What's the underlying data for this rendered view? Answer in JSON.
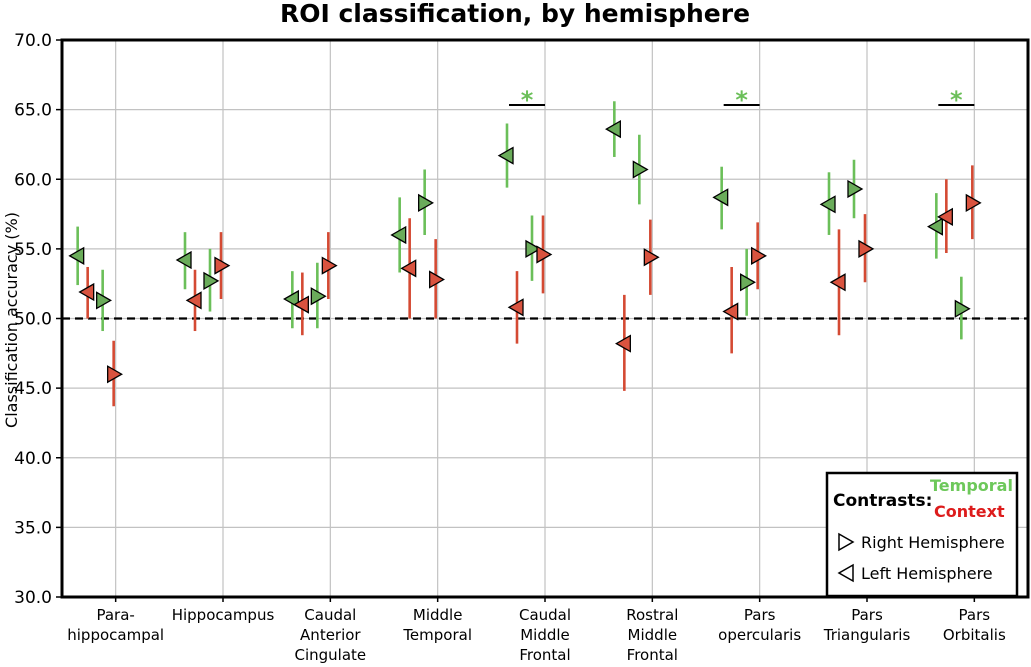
{
  "chart_data": {
    "type": "scatter",
    "title": "ROI classification, by hemisphere",
    "ylabel": "Classification accuracy (%)",
    "xlabel": "",
    "ylim": [
      30,
      70
    ],
    "yticks": [
      30,
      35,
      40,
      45,
      50,
      55,
      60,
      65,
      70
    ],
    "grid": true,
    "chance_line": 50,
    "categories": [
      [
        "Para-",
        "hippocampal"
      ],
      [
        "Hippocampus"
      ],
      [
        "Caudal",
        "Anterior",
        "Cingulate"
      ],
      [
        "Middle",
        "Temporal"
      ],
      [
        "Caudal",
        "Middle",
        "Frontal"
      ],
      [
        "Rostral",
        "Middle",
        "Frontal"
      ],
      [
        "Pars",
        "opercularis"
      ],
      [
        "Pars",
        "Triangularis"
      ],
      [
        "Pars",
        "Orbitalis"
      ]
    ],
    "series": [
      {
        "name": "Temporal",
        "hemisphere": "Left Hemisphere",
        "marker": "left-triangle",
        "values": [
          54.5,
          54.2,
          51.4,
          56.0,
          61.7,
          63.6,
          58.7,
          58.2,
          56.6
        ],
        "ci_low": [
          52.4,
          52.1,
          49.3,
          53.3,
          59.4,
          61.6,
          56.4,
          56.0,
          54.3
        ],
        "ci_high": [
          56.6,
          56.2,
          53.4,
          58.7,
          64.0,
          65.6,
          60.9,
          60.5,
          59.0
        ]
      },
      {
        "name": "Context",
        "hemisphere": "Left Hemisphere",
        "marker": "left-triangle",
        "values": [
          51.9,
          51.3,
          51.0,
          53.6,
          50.8,
          48.2,
          50.5,
          52.6,
          57.3
        ],
        "ci_low": [
          50.0,
          49.1,
          48.8,
          50.0,
          48.2,
          44.8,
          47.5,
          48.8,
          54.7
        ],
        "ci_high": [
          53.7,
          53.5,
          53.3,
          57.2,
          53.4,
          51.7,
          53.7,
          56.4,
          60.0
        ]
      },
      {
        "name": "Temporal",
        "hemisphere": "Right Hemisphere",
        "marker": "right-triangle",
        "values": [
          51.3,
          52.7,
          51.6,
          58.3,
          55.0,
          60.7,
          52.6,
          59.3,
          50.7
        ],
        "ci_low": [
          49.1,
          50.5,
          49.3,
          56.0,
          52.7,
          58.2,
          50.2,
          57.2,
          48.5
        ],
        "ci_high": [
          53.5,
          55.0,
          54.0,
          60.7,
          57.4,
          63.2,
          55.0,
          61.4,
          53.0
        ]
      },
      {
        "name": "Context",
        "hemisphere": "Right Hemisphere",
        "marker": "right-triangle",
        "values": [
          46.0,
          53.8,
          53.8,
          52.8,
          54.6,
          54.4,
          54.5,
          55.0,
          58.3
        ],
        "ci_low": [
          43.7,
          51.4,
          51.4,
          50.0,
          51.8,
          51.7,
          52.1,
          52.6,
          55.7
        ],
        "ci_high": [
          48.4,
          56.2,
          56.2,
          55.7,
          57.4,
          57.1,
          56.9,
          57.5,
          61.0
        ]
      }
    ],
    "significance": [
      {
        "category_index": 4,
        "label": "*"
      },
      {
        "category_index": 6,
        "label": "*"
      },
      {
        "category_index": 8,
        "label": "*"
      }
    ],
    "legend": {
      "position": "bottom-right",
      "title": "Contrasts:",
      "series_labels": [
        "Temporal",
        "Context"
      ],
      "marker_labels": [
        "Right Hemisphere",
        "Left Hemisphere"
      ]
    },
    "colors": {
      "temporal_marker": "#6aac5a",
      "temporal_bar": "#6bbf59",
      "context_marker": "#d9533f",
      "context_bar": "#d44a33",
      "temporal_text": "#6dc85a",
      "context_text": "#dd1c1c",
      "grid": "#c2c2c2"
    }
  }
}
